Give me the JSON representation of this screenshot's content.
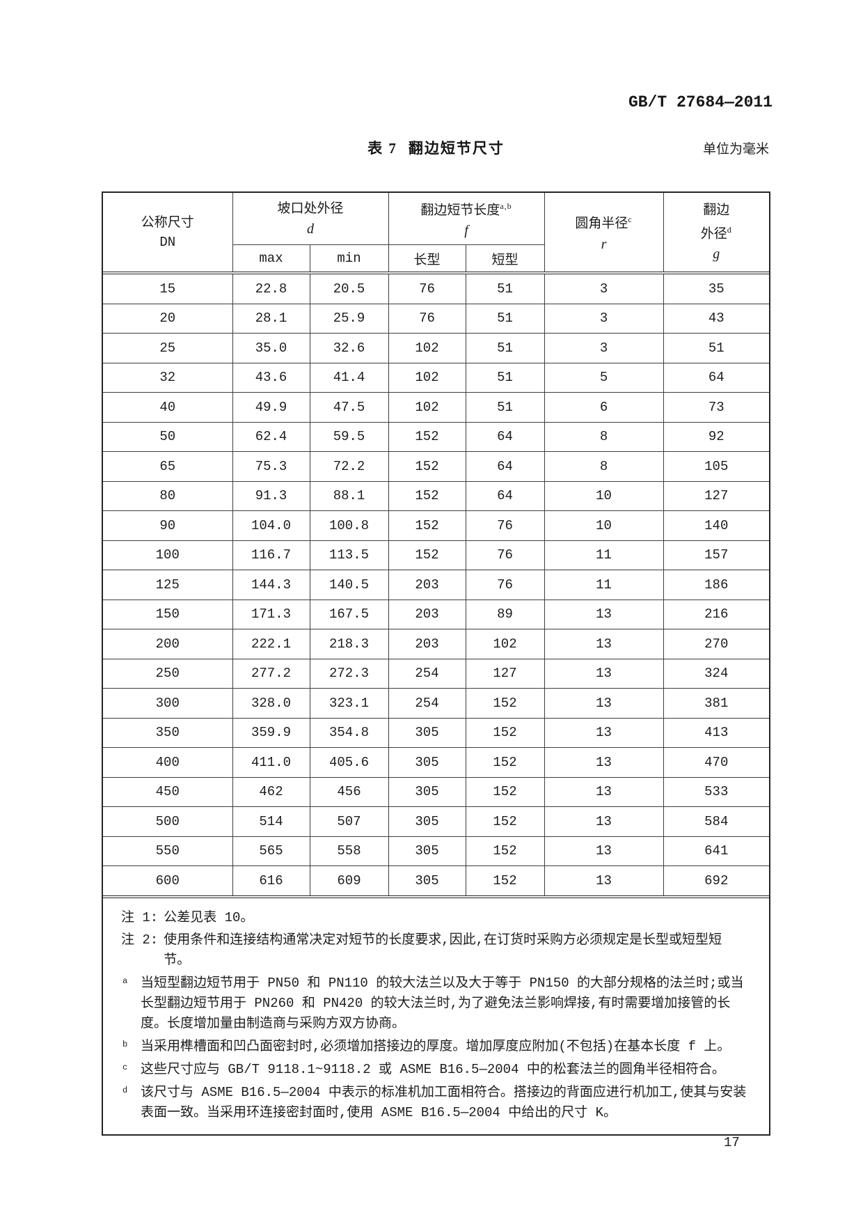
{
  "page": {
    "standard_code": "GB/T 27684—2011",
    "table_caption_prefix": "表 7",
    "table_caption_title": "翻边短节尺寸",
    "unit_note": "单位为毫米",
    "page_number": "17"
  },
  "table": {
    "header": {
      "dn_line1": "公称尺寸",
      "dn_line2": "DN",
      "d_title": "坡口处外径",
      "d_symbol": "d",
      "f_title": "翻边短节长度",
      "f_sup": "a,b",
      "f_symbol": "f",
      "r_title": "圆角半径",
      "r_sup": "c",
      "r_symbol": "r",
      "g_line1": "翻边",
      "g_line2": "外径",
      "g_sup": "d",
      "g_symbol": "g",
      "sub_max": "max",
      "sub_min": "min",
      "sub_long": "长型",
      "sub_short": "短型"
    },
    "rows": [
      [
        "15",
        "22.8",
        "20.5",
        "76",
        "51",
        "3",
        "35"
      ],
      [
        "20",
        "28.1",
        "25.9",
        "76",
        "51",
        "3",
        "43"
      ],
      [
        "25",
        "35.0",
        "32.6",
        "102",
        "51",
        "3",
        "51"
      ],
      [
        "32",
        "43.6",
        "41.4",
        "102",
        "51",
        "5",
        "64"
      ],
      [
        "40",
        "49.9",
        "47.5",
        "102",
        "51",
        "6",
        "73"
      ],
      [
        "50",
        "62.4",
        "59.5",
        "152",
        "64",
        "8",
        "92"
      ],
      [
        "65",
        "75.3",
        "72.2",
        "152",
        "64",
        "8",
        "105"
      ],
      [
        "80",
        "91.3",
        "88.1",
        "152",
        "64",
        "10",
        "127"
      ],
      [
        "90",
        "104.0",
        "100.8",
        "152",
        "76",
        "10",
        "140"
      ],
      [
        "100",
        "116.7",
        "113.5",
        "152",
        "76",
        "11",
        "157"
      ],
      [
        "125",
        "144.3",
        "140.5",
        "203",
        "76",
        "11",
        "186"
      ],
      [
        "150",
        "171.3",
        "167.5",
        "203",
        "89",
        "13",
        "216"
      ],
      [
        "200",
        "222.1",
        "218.3",
        "203",
        "102",
        "13",
        "270"
      ],
      [
        "250",
        "277.2",
        "272.3",
        "254",
        "127",
        "13",
        "324"
      ],
      [
        "300",
        "328.0",
        "323.1",
        "254",
        "152",
        "13",
        "381"
      ],
      [
        "350",
        "359.9",
        "354.8",
        "305",
        "152",
        "13",
        "413"
      ],
      [
        "400",
        "411.0",
        "405.6",
        "305",
        "152",
        "13",
        "470"
      ],
      [
        "450",
        "462",
        "456",
        "305",
        "152",
        "13",
        "533"
      ],
      [
        "500",
        "514",
        "507",
        "305",
        "152",
        "13",
        "584"
      ],
      [
        "550",
        "565",
        "558",
        "305",
        "152",
        "13",
        "641"
      ],
      [
        "600",
        "616",
        "609",
        "305",
        "152",
        "13",
        "692"
      ]
    ]
  },
  "notes": {
    "note1_label": "注 1:",
    "note1_text": "公差见表 10。",
    "note2_label": "注 2:",
    "note2_text": "使用条件和连接结构通常决定对短节的长度要求,因此,在订货时采购方必须规定是长型或短型短节。",
    "footnotes": [
      {
        "sup": "a",
        "text": "当短型翻边短节用于 PN50 和 PN110 的较大法兰以及大于等于 PN150 的大部分规格的法兰时;或当长型翻边短节用于 PN260 和 PN420 的较大法兰时,为了避免法兰影响焊接,有时需要增加接管的长度。长度增加量由制造商与采购方双方协商。"
      },
      {
        "sup": "b",
        "text": "当采用榫槽面和凹凸面密封时,必须增加搭接边的厚度。增加厚度应附加(不包括)在基本长度 f 上。"
      },
      {
        "sup": "c",
        "text": "这些尺寸应与 GB/T 9118.1~9118.2 或 ASME B16.5—2004 中的松套法兰的圆角半径相符合。"
      },
      {
        "sup": "d",
        "text": "该尺寸与 ASME B16.5—2004 中表示的标准机加工面相符合。搭接边的背面应进行机加工,使其与安装表面一致。当采用环连接密封面时,使用 ASME B16.5—2004 中给出的尺寸 K。"
      }
    ]
  }
}
